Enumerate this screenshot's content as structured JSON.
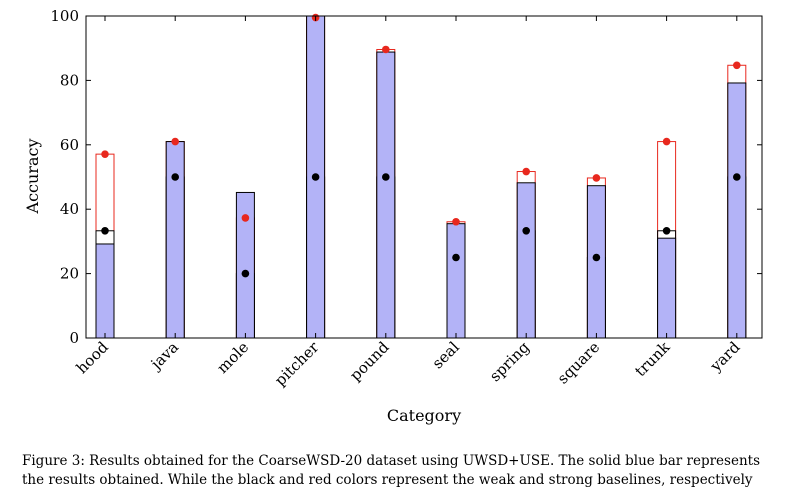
{
  "chart_data": {
    "type": "bar",
    "xlabel": "Category",
    "ylabel": "Accuracy",
    "ylim": [
      0,
      100
    ],
    "yticks": [
      0,
      20,
      40,
      60,
      80,
      100
    ],
    "categories": [
      "hood",
      "java",
      "mole",
      "pitcher",
      "pound",
      "seal",
      "spring",
      "square",
      "trunk",
      "yard"
    ],
    "series": [
      {
        "role": "result",
        "color": "#b3b3f7",
        "values": [
          29.2,
          61.0,
          45.2,
          100.0,
          88.8,
          35.5,
          48.2,
          47.3,
          31.0,
          79.2
        ]
      },
      {
        "role": "weak baseline",
        "color": "#000000",
        "values": [
          33.3,
          50.0,
          20.0,
          50.0,
          50.0,
          25.0,
          33.3,
          25.0,
          33.3,
          50.0
        ]
      },
      {
        "role": "strong baseline",
        "color": "#e8281e",
        "values": [
          57.1,
          61.0,
          37.3,
          99.5,
          89.6,
          36.1,
          51.7,
          49.7,
          61.0,
          84.7
        ]
      }
    ]
  },
  "caption": "Figure 3: Results obtained for the CoarseWSD-20 dataset using UWSD+USE. The solid blue bar represents the results obtained. While the black and red colors represent the weak and strong baselines, respectively"
}
